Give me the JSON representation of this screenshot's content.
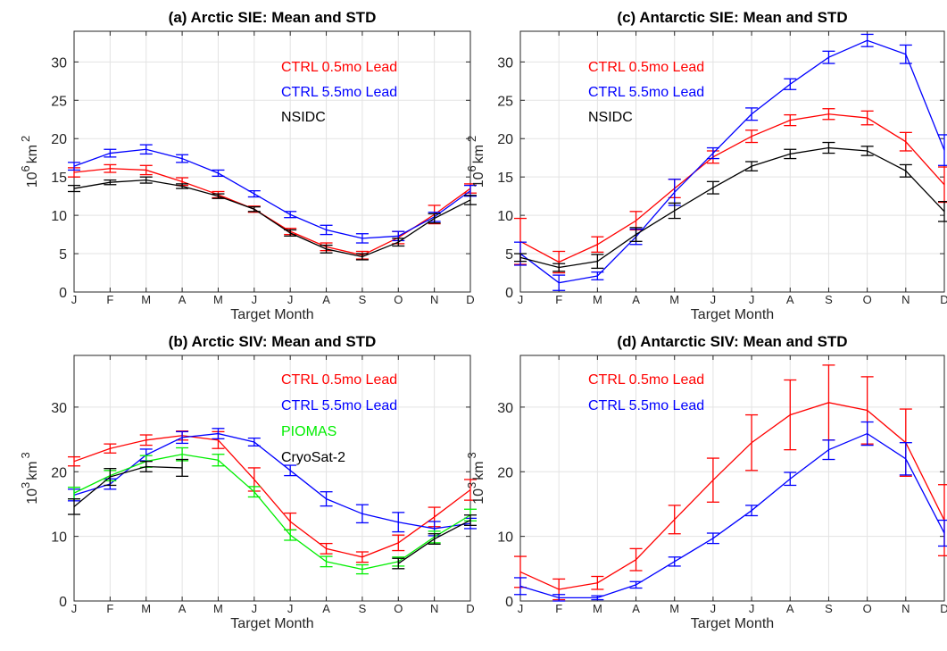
{
  "chart_data": [
    {
      "id": "a",
      "type": "line",
      "title": "(a) Arctic SIE: Mean and STD",
      "xlabel": "Target Month",
      "ylabel_base": "10",
      "ylabel_exp": "6",
      "ylabel_unit": "km",
      "ylabel_unit_exp": "2",
      "categories": [
        "J",
        "F",
        "M",
        "A",
        "M",
        "J",
        "J",
        "A",
        "S",
        "O",
        "N",
        "D"
      ],
      "ylim": [
        0,
        34
      ],
      "yticks": [
        0,
        5,
        10,
        15,
        20,
        25,
        30
      ],
      "grid": true,
      "legend_position": "top-right",
      "series": [
        {
          "name": "CTRL 0.5mo Lead",
          "color": "#ff0000",
          "values": [
            15.6,
            16.1,
            15.9,
            14.4,
            12.7,
            10.8,
            7.9,
            5.9,
            4.8,
            7.1,
            10.1,
            13.5
          ],
          "err": [
            0.6,
            0.5,
            0.6,
            0.5,
            0.4,
            0.4,
            0.4,
            0.5,
            0.5,
            0.8,
            1.2,
            0.6
          ]
        },
        {
          "name": "CTRL 5.5mo Lead",
          "color": "#0000ff",
          "values": [
            16.4,
            18.1,
            18.6,
            17.4,
            15.5,
            12.8,
            10.1,
            8.1,
            7.0,
            7.3,
            9.8,
            13.2
          ],
          "err": [
            0.5,
            0.5,
            0.6,
            0.5,
            0.4,
            0.4,
            0.4,
            0.6,
            0.6,
            0.6,
            0.6,
            0.7
          ]
        },
        {
          "name": "NSIDC",
          "color": "#000000",
          "values": [
            13.5,
            14.3,
            14.6,
            13.8,
            12.5,
            10.8,
            7.7,
            5.6,
            4.6,
            6.5,
            9.6,
            12.0
          ],
          "err": [
            0.4,
            0.3,
            0.4,
            0.3,
            0.3,
            0.3,
            0.4,
            0.5,
            0.4,
            0.5,
            0.6,
            0.6
          ]
        }
      ]
    },
    {
      "id": "c",
      "type": "line",
      "title": "(c) Antarctic SIE: Mean and STD",
      "xlabel": "Target Month",
      "ylabel_base": "10",
      "ylabel_exp": "6",
      "ylabel_unit": "km",
      "ylabel_unit_exp": "2",
      "categories": [
        "J",
        "F",
        "M",
        "A",
        "M",
        "J",
        "J",
        "A",
        "S",
        "O",
        "N",
        "D"
      ],
      "ylim": [
        0,
        34
      ],
      "yticks": [
        0,
        5,
        10,
        15,
        20,
        25,
        30
      ],
      "grid": true,
      "legend_position": "top-left",
      "series": [
        {
          "name": "CTRL 0.5mo Lead",
          "color": "#ff0000",
          "values": [
            6.6,
            3.9,
            6.2,
            9.3,
            13.5,
            17.6,
            20.3,
            22.4,
            23.2,
            22.7,
            19.6,
            14.0
          ],
          "err": [
            3.0,
            1.4,
            1.0,
            1.2,
            1.2,
            0.8,
            0.8,
            0.7,
            0.7,
            0.9,
            1.2,
            2.3
          ]
        },
        {
          "name": "CTRL 5.5mo Lead",
          "color": "#0000ff",
          "values": [
            5.0,
            1.2,
            2.1,
            7.2,
            13.0,
            18.1,
            23.2,
            27.1,
            30.6,
            32.8,
            31.0,
            18.5
          ],
          "err": [
            1.5,
            1.0,
            0.5,
            1.0,
            1.7,
            0.7,
            0.8,
            0.7,
            0.8,
            0.8,
            1.2,
            2.0
          ]
        },
        {
          "name": "NSIDC",
          "color": "#000000",
          "values": [
            4.5,
            3.2,
            4.0,
            7.5,
            10.6,
            13.6,
            16.4,
            18.0,
            18.8,
            18.4,
            15.8,
            10.5
          ],
          "err": [
            0.5,
            0.5,
            0.9,
            0.9,
            1.0,
            0.8,
            0.6,
            0.6,
            0.7,
            0.6,
            0.8,
            1.3
          ]
        }
      ]
    },
    {
      "id": "b",
      "type": "line",
      "title": "(b) Arctic SIV: Mean and STD",
      "xlabel": "Target Month",
      "ylabel_base": "10",
      "ylabel_exp": "3",
      "ylabel_unit": "km",
      "ylabel_unit_exp": "3",
      "categories": [
        "J",
        "F",
        "M",
        "A",
        "M",
        "J",
        "J",
        "A",
        "S",
        "O",
        "N",
        "D"
      ],
      "ylim": [
        0,
        38
      ],
      "yticks": [
        0,
        10,
        20,
        30
      ],
      "grid": true,
      "legend_position": "top-right",
      "series": [
        {
          "name": "CTRL 0.5mo Lead",
          "color": "#ff0000",
          "values": [
            21.6,
            23.6,
            24.9,
            25.6,
            24.9,
            18.8,
            12.3,
            8.1,
            6.8,
            9.0,
            13.0,
            17.2
          ],
          "err": [
            0.7,
            0.7,
            0.8,
            0.7,
            1.3,
            1.8,
            1.3,
            0.8,
            0.8,
            1.2,
            1.5,
            1.6
          ]
        },
        {
          "name": "CTRL 5.5mo Lead",
          "color": "#0000ff",
          "values": [
            16.4,
            18.1,
            22.6,
            25.3,
            25.9,
            24.6,
            20.2,
            15.8,
            13.5,
            12.2,
            11.2,
            12.0
          ],
          "err": [
            0.9,
            0.8,
            0.9,
            0.9,
            0.8,
            0.6,
            0.8,
            1.1,
            1.4,
            1.5,
            1.1,
            0.8
          ]
        },
        {
          "name": "PIOMAS",
          "color": "#00ee00",
          "values": [
            16.7,
            19.4,
            21.6,
            22.7,
            21.8,
            16.9,
            10.2,
            6.1,
            4.9,
            6.1,
            9.9,
            13.3
          ],
          "err": [
            0.9,
            0.8,
            0.9,
            1.0,
            0.9,
            0.8,
            0.8,
            0.8,
            0.7,
            0.7,
            0.9,
            0.9
          ]
        },
        {
          "name": "CryoSat-2",
          "color": "#000000",
          "values": [
            14.6,
            19.2,
            20.8,
            20.6,
            null,
            null,
            null,
            null,
            null,
            5.8,
            9.6,
            12.5
          ],
          "err": [
            1.2,
            1.3,
            0.8,
            1.3,
            0,
            0,
            0,
            0,
            0,
            0.8,
            0.8,
            0.8
          ]
        }
      ]
    },
    {
      "id": "d",
      "type": "line",
      "title": "(d) Antarctic SIV: Mean and STD",
      "xlabel": "Target Month",
      "ylabel_base": "10",
      "ylabel_exp": "3",
      "ylabel_unit": "km",
      "ylabel_unit_exp": "3",
      "categories": [
        "J",
        "F",
        "M",
        "A",
        "M",
        "J",
        "J",
        "A",
        "S",
        "O",
        "N",
        "D"
      ],
      "ylim": [
        0,
        38
      ],
      "yticks": [
        0,
        10,
        20,
        30
      ],
      "grid": true,
      "legend_position": "top-left",
      "series": [
        {
          "name": "CTRL 0.5mo Lead",
          "color": "#ff0000",
          "values": [
            4.5,
            1.8,
            2.8,
            6.4,
            12.6,
            18.7,
            24.5,
            28.8,
            30.7,
            29.5,
            24.5,
            12.5
          ],
          "err": [
            2.4,
            1.6,
            1.0,
            1.7,
            2.2,
            3.4,
            4.3,
            5.4,
            5.8,
            5.2,
            5.2,
            5.5
          ]
        },
        {
          "name": "CTRL 5.5mo Lead",
          "color": "#0000ff",
          "values": [
            2.3,
            0.5,
            0.5,
            2.5,
            6.1,
            9.7,
            14.0,
            18.9,
            23.4,
            25.9,
            22.0,
            10.5
          ],
          "err": [
            1.3,
            0.5,
            0.3,
            0.5,
            0.7,
            0.8,
            0.8,
            1.0,
            1.5,
            1.8,
            2.5,
            2.0
          ]
        }
      ]
    }
  ]
}
